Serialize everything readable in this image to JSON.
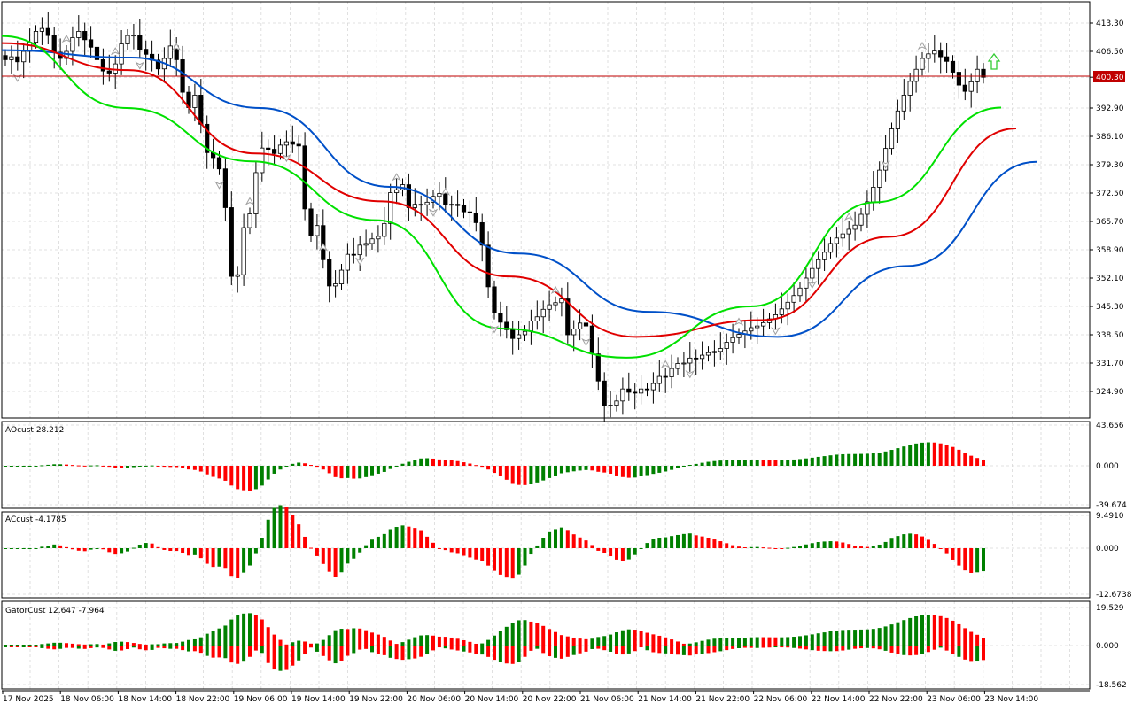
{
  "colors": {
    "grid": "#d8d8d8",
    "axis": "#000000",
    "bull": "#008000",
    "bear": "#ff0000",
    "jaw": "#0050c8",
    "teeth": "#e00000",
    "lips": "#00e000",
    "price_line": "#c00000",
    "fractal": "#a0a0a0",
    "arrow": "#33cc33"
  },
  "price_panel": {
    "current_price_label": "400.30",
    "y_ticks": [
      "413.30",
      "406.50",
      "400.30",
      "392.90",
      "386.10",
      "379.30",
      "372.50",
      "365.70",
      "358.90",
      "352.10",
      "345.30",
      "338.50",
      "331.70",
      "324.90"
    ]
  },
  "ao_panel": {
    "label": "AOcust 28.212",
    "y_ticks": [
      "43.656",
      "0.000",
      "-39.674"
    ]
  },
  "ac_panel": {
    "label": "ACcust -4.1785",
    "y_ticks": [
      "9.4910",
      "0.000",
      "-12.6738"
    ]
  },
  "gator_panel": {
    "label": "GatorCust 12.647 -7.964",
    "y_ticks": [
      "19.529",
      "0.000",
      "-18.562"
    ]
  },
  "x_labels": [
    "17 Nov 2025",
    "18 Nov 06:00",
    "18 Nov 14:00",
    "18 Nov 22:00",
    "19 Nov 06:00",
    "19 Nov 14:00",
    "19 Nov 22:00",
    "20 Nov 06:00",
    "20 Nov 14:00",
    "20 Nov 22:00",
    "21 Nov 06:00",
    "21 Nov 14:00",
    "21 Nov 22:00",
    "22 Nov 06:00",
    "22 Nov 14:00",
    "22 Nov 22:00",
    "23 Nov 06:00",
    "23 Nov 14:00"
  ],
  "chart_data": {
    "type": "candlestick",
    "closes": [
      404.5,
      405.2,
      404,
      406.5,
      408.7,
      411.3,
      412,
      410.3,
      406.3,
      404.8,
      406.5,
      409.8,
      411.3,
      409.3,
      407.5,
      404.5,
      401.8,
      401.3,
      403.5,
      408.3,
      410.3,
      410.4,
      407,
      405.8,
      404.4,
      402.3,
      404.8,
      407.8,
      404.5,
      396.7,
      393,
      396,
      389,
      382.2,
      381,
      378.3,
      369,
      352.5,
      352.9,
      364.2,
      367.5,
      377.4,
      383.3,
      383,
      382,
      384,
      384.8,
      384.2,
      383.8,
      368.7,
      362.3,
      364.7,
      356.5,
      350.2,
      350.7,
      354,
      357.8,
      357.7,
      360,
      360.4,
      361.5,
      362.1,
      365.2,
      372.6,
      373.3,
      374.5,
      369,
      369.8,
      369.7,
      370.3,
      371.7,
      372.4,
      369.8,
      369.8,
      369.5,
      368,
      367.7,
      365.4,
      360,
      350,
      343.7,
      341.5,
      339.7,
      337.6,
      338.5,
      339.3,
      341.8,
      342.8,
      344.6,
      345.7,
      346.2,
      347.1,
      338.5,
      339.9,
      341.3,
      340.6,
      333.9,
      327.4,
      321.4,
      321.6,
      322.6,
      325.5,
      324.7,
      324.5,
      325.5,
      325.3,
      326.8,
      328.5,
      328.4,
      330.4,
      331.6,
      331.7,
      332.9,
      332.8,
      333.6,
      334.2,
      334.5,
      335.2,
      336.7,
      337.8,
      338.6,
      339.4,
      340.2,
      340.6,
      341.4,
      342.3,
      343.3,
      344.7,
      346.3,
      347.9,
      349.7,
      352.1,
      354.4,
      356.5,
      358.3,
      360.4,
      361.7,
      362.7,
      363.8,
      364.8,
      367.4,
      370.4,
      373.9,
      378,
      383.2,
      387.9,
      392.2,
      396,
      399.3,
      402.2,
      404.8,
      405.9,
      406.6,
      405.2,
      404.1,
      401.5,
      398.4,
      396.9,
      399.2,
      402.2,
      400.3
    ],
    "lips_line": [
      410.2,
      392.9,
      380.1,
      366.0,
      340.0,
      333.0,
      345.3,
      370.3,
      393.0
    ],
    "teeth_line": [
      408.5,
      402.0,
      382.0,
      370.5,
      352.5,
      338.0,
      342.0,
      362.0,
      388.0
    ],
    "jaw_line": [
      406.8,
      405.0,
      392.9,
      374.0,
      358.0,
      344.0,
      338.0,
      355.0,
      380.0
    ]
  }
}
